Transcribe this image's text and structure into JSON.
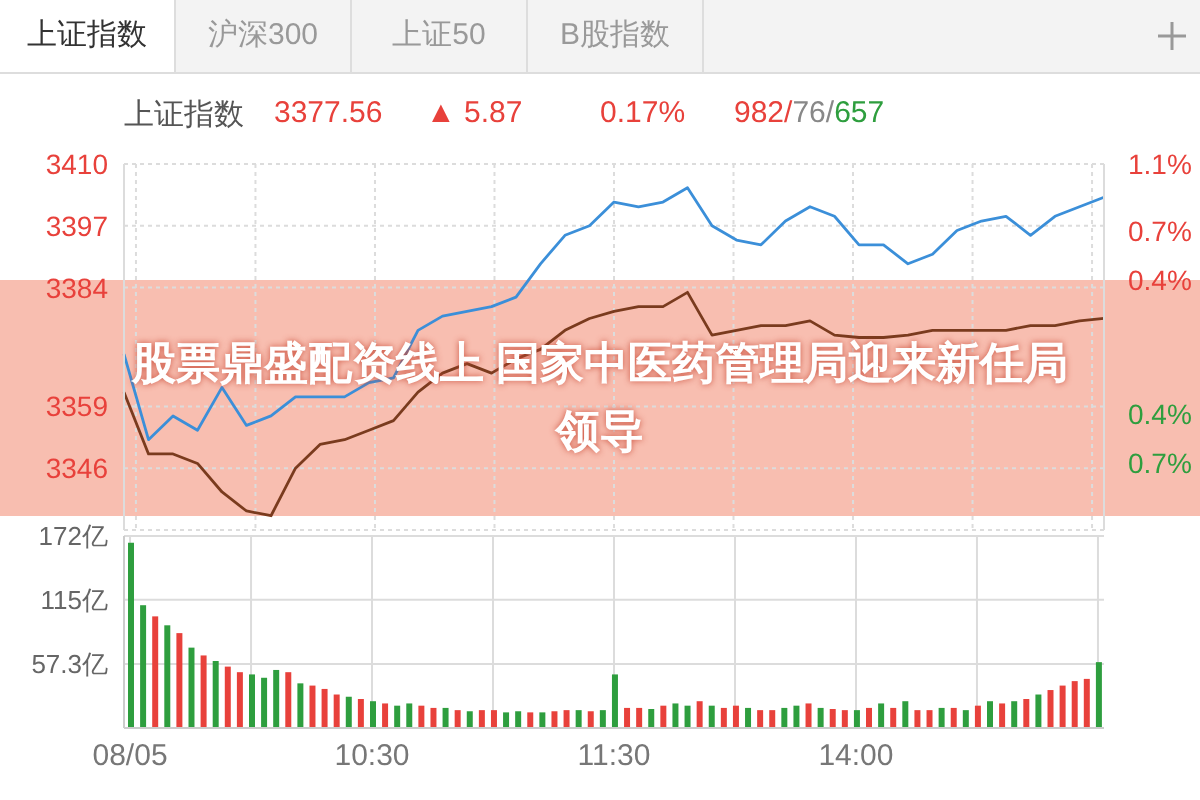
{
  "chart_data": [
    {
      "type": "line",
      "title": "上证指数",
      "annotations": [
        "上证指数",
        "沪深300",
        "上证50",
        "B股指数",
        "3377.56",
        "▲ 5.87",
        "0.17%",
        "982/76/657",
        "股票鼎盛配资线上 国家中医药管理局迎来新任局领导"
      ],
      "categories": [
        null,
        null,
        null,
        null,
        null,
        null,
        null,
        null,
        null,
        null,
        null,
        null,
        null,
        null,
        null,
        null,
        null,
        null,
        null,
        null,
        null,
        null,
        null,
        null,
        null,
        null,
        null,
        null,
        null,
        null,
        null,
        null,
        null,
        null,
        null,
        null,
        null,
        null,
        null,
        null,
        null
      ],
      "series": [
        {
          "color": "#3b8fd9",
          "values": [
            3370,
            3352,
            3357,
            3354,
            3363,
            3355,
            3357,
            3361,
            3361,
            3361,
            3364,
            3365,
            3375,
            3378,
            3379,
            3380,
            3382,
            3389,
            3395,
            3397,
            3402,
            3401,
            3402,
            3405,
            3397,
            3394,
            3393,
            3398,
            3401,
            3399,
            3393,
            3393,
            3389,
            3391,
            3396,
            3398,
            3399,
            3395,
            3399,
            3401,
            3403
          ]
        },
        {
          "color": "#7a3b1e",
          "values": [
            3362,
            3349,
            3349,
            3347,
            3341,
            3337,
            3336,
            3346,
            3351,
            3352,
            3354,
            3356,
            3362,
            3366,
            3368,
            3366,
            3369,
            3371,
            3375,
            3377.5,
            3379,
            3380,
            3380,
            3383,
            3374,
            3375,
            3376,
            3376,
            3377,
            3374,
            3373.5,
            3373.5,
            3374,
            3375,
            3375,
            3375,
            3375,
            3376,
            3376,
            3377,
            3377.5
          ]
        }
      ],
      "ylim": [
        3333,
        3410
      ],
      "yticks": [
        3346,
        3359,
        3384,
        3397,
        3410
      ],
      "y2lim": [
        -1.1,
        1.1
      ],
      "y2ticks": [
        {
          "value": -0.7,
          "label": "0.7%"
        },
        {
          "value": -0.4,
          "label": "0.4%"
        },
        {
          "value": 0.4,
          "label": "0.4%"
        },
        {
          "value": 0.7,
          "label": "0.7%"
        },
        {
          "value": 1.1,
          "label": "1.1%"
        }
      ],
      "grid": true,
      "legend": false,
      "marker": "none",
      "tick_labels": "y"
    },
    {
      "type": "bar",
      "categories": [
        "08/05",
        null,
        null,
        null,
        null,
        null,
        null,
        null,
        null,
        null,
        null,
        null,
        null,
        null,
        null,
        null,
        null,
        null,
        null,
        null,
        "10:30",
        null,
        null,
        null,
        null,
        null,
        null,
        null,
        null,
        null,
        null,
        null,
        null,
        null,
        null,
        null,
        null,
        null,
        null,
        null,
        "11:30",
        null,
        null,
        null,
        null,
        null,
        null,
        null,
        null,
        null,
        null,
        null,
        null,
        null,
        null,
        null,
        null,
        null,
        null,
        null,
        "14:00",
        null,
        null,
        null,
        null,
        null,
        null,
        null,
        null,
        null,
        null,
        null,
        null,
        null,
        null,
        null,
        null,
        null,
        null,
        null,
        null
      ],
      "values": [
        166,
        110,
        100,
        92,
        85,
        72,
        65,
        60,
        55,
        50,
        48,
        45,
        52,
        50,
        40,
        38,
        35,
        30,
        28,
        26,
        24,
        22,
        20,
        22,
        20,
        18,
        18,
        16,
        15,
        16,
        16,
        14,
        15,
        14,
        14,
        15,
        16,
        16,
        15,
        16,
        48,
        18,
        18,
        17,
        20,
        22,
        20,
        24,
        20,
        18,
        20,
        18,
        16,
        16,
        18,
        20,
        22,
        18,
        17,
        16,
        16,
        18,
        22,
        18,
        24,
        16,
        16,
        18,
        18,
        16,
        20,
        24,
        22,
        24,
        26,
        30,
        34,
        38,
        42,
        44,
        59
      ],
      "colors": [
        "#2e9e3e",
        "#2e9e3e",
        "#e8413b",
        "#2e9e3e",
        "#e8413b",
        "#2e9e3e",
        "#e8413b",
        "#2e9e3e",
        "#e8413b",
        "#e8413b",
        "#2e9e3e",
        "#2e9e3e",
        "#2e9e3e",
        "#e8413b",
        "#2e9e3e",
        "#e8413b",
        "#e8413b",
        "#e8413b",
        "#2e9e3e",
        "#e8413b",
        "#2e9e3e",
        "#e8413b",
        "#2e9e3e",
        "#2e9e3e",
        "#e8413b",
        "#e8413b",
        "#2e9e3e",
        "#e8413b",
        "#2e9e3e",
        "#e8413b",
        "#e8413b",
        "#2e9e3e",
        "#2e9e3e",
        "#e8413b",
        "#2e9e3e",
        "#e8413b",
        "#e8413b",
        "#2e9e3e",
        "#e8413b",
        "#2e9e3e",
        "#2e9e3e",
        "#e8413b",
        "#e8413b",
        "#2e9e3e",
        "#e8413b",
        "#2e9e3e",
        "#2e9e3e",
        "#e8413b",
        "#2e9e3e",
        "#e8413b",
        "#e8413b",
        "#2e9e3e",
        "#e8413b",
        "#e8413b",
        "#2e9e3e",
        "#2e9e3e",
        "#e8413b",
        "#2e9e3e",
        "#e8413b",
        "#e8413b",
        "#2e9e3e",
        "#e8413b",
        "#2e9e3e",
        "#e8413b",
        "#2e9e3e",
        "#e8413b",
        "#e8413b",
        "#2e9e3e",
        "#e8413b",
        "#2e9e3e",
        "#e8413b",
        "#2e9e3e",
        "#e8413b",
        "#2e9e3e",
        "#e8413b",
        "#2e9e3e",
        "#e8413b",
        "#e8413b",
        "#e8413b",
        "#e8413b",
        "#2e9e3e"
      ],
      "ylim": [
        0,
        172
      ],
      "yticks": [
        {
          "value": 57.3,
          "label": "57.3亿"
        },
        {
          "value": 115,
          "label": "115亿"
        },
        {
          "value": 172,
          "label": "172亿"
        }
      ],
      "grid": true
    }
  ]
}
